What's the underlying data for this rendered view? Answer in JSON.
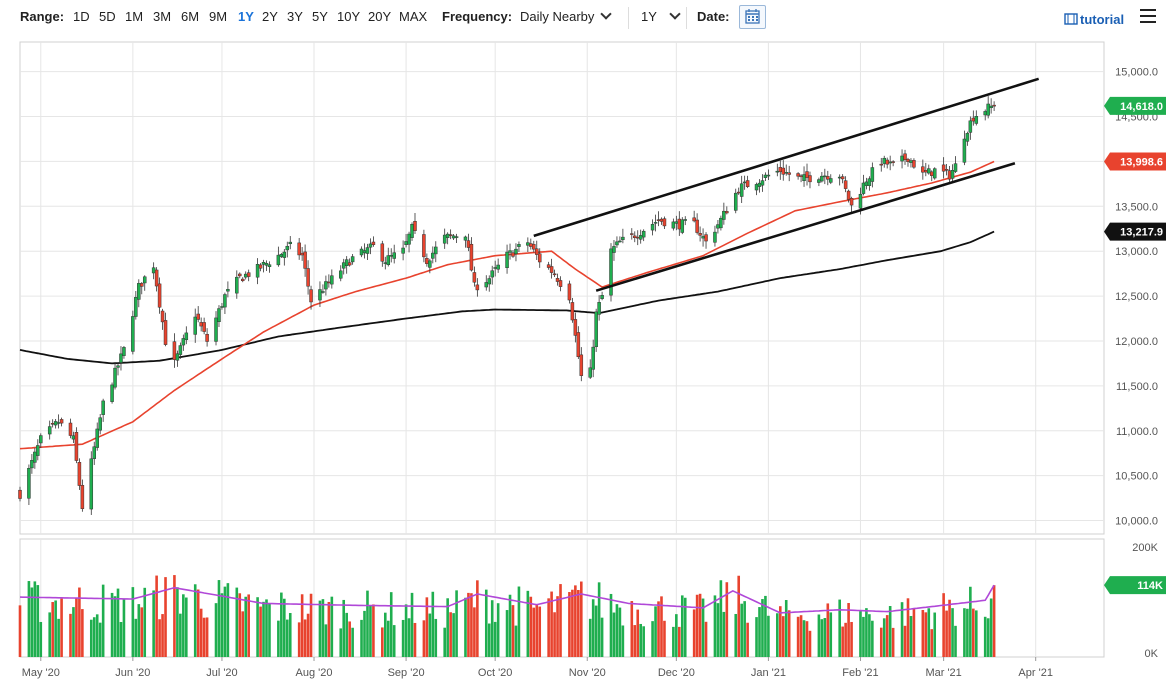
{
  "toolbar": {
    "range_label": "Range:",
    "ranges": [
      "1D",
      "5D",
      "1M",
      "3M",
      "6M",
      "9M",
      "1Y",
      "2Y",
      "3Y",
      "5Y",
      "10Y",
      "20Y",
      "MAX"
    ],
    "active_range": "1Y",
    "frequency_label": "Frequency:",
    "frequency_value": "Daily Nearby",
    "period_value": "1Y",
    "date_label": "Date:",
    "tutorial_label": "tutorial"
  },
  "colors": {
    "up": "#1fae4f",
    "down": "#e8432e",
    "ma_fast": "#e8432e",
    "ma_slow": "#111111",
    "volume_avg": "#b048d8",
    "badge_price": "#1fae4f",
    "badge_ma_fast": "#e8432e",
    "badge_ma_slow": "#111111",
    "badge_volume": "#1fae4f"
  },
  "chart_data": {
    "type": "candlestick",
    "price_axis": {
      "ticks": [
        "15,000.0",
        "14,500.0",
        "14,000.0",
        "13,500.0",
        "13,000.0",
        "12,500.0",
        "12,000.0",
        "11,500.0",
        "11,000.0",
        "10,500.0",
        "10,000.0"
      ],
      "tick_values": [
        15000,
        14500,
        14000,
        13500,
        13000,
        12500,
        12000,
        11500,
        11000,
        10500,
        10000
      ],
      "ylim": [
        9850,
        15330
      ]
    },
    "volume_axis": {
      "ticks": [
        "200K",
        "0K"
      ],
      "tick_values": [
        200000,
        0
      ],
      "ylim": [
        0,
        200000
      ]
    },
    "x_axis": {
      "labels": [
        "May '20",
        "Jun '20",
        "Jul '20",
        "Aug '20",
        "Sep '20",
        "Oct '20",
        "Nov '20",
        "Dec '20",
        "Jan '21",
        "Feb '21",
        "Mar '21",
        "Apr '21"
      ],
      "dates": [
        "2020-05-01",
        "2020-06-01",
        "2020-07-01",
        "2020-08-01",
        "2020-09-01",
        "2020-10-01",
        "2020-11-01",
        "2020-12-01",
        "2021-01-01",
        "2021-02-01",
        "2021-03-01",
        "2021-04-01"
      ],
      "start": "2020-04-24",
      "end": "2021-04-24"
    },
    "price_anchors": [
      [
        "2020-04-24",
        10300
      ],
      [
        "2020-05-01",
        10900
      ],
      [
        "2020-05-07",
        11100
      ],
      [
        "2020-05-12",
        10900
      ],
      [
        "2020-05-15",
        10150
      ],
      [
        "2020-05-22",
        11300
      ],
      [
        "2020-05-29",
        11900
      ],
      [
        "2020-06-03",
        12600
      ],
      [
        "2020-06-08",
        12850
      ],
      [
        "2020-06-12",
        12000
      ],
      [
        "2020-06-15",
        11750
      ],
      [
        "2020-06-22",
        12300
      ],
      [
        "2020-06-26",
        12000
      ],
      [
        "2020-07-02",
        12500
      ],
      [
        "2020-07-07",
        12700
      ],
      [
        "2020-07-13",
        12800
      ],
      [
        "2020-07-20",
        12950
      ],
      [
        "2020-07-24",
        13050
      ],
      [
        "2020-07-28",
        12950
      ],
      [
        "2020-07-31",
        12450
      ],
      [
        "2020-08-06",
        12650
      ],
      [
        "2020-08-13",
        12900
      ],
      [
        "2020-08-21",
        13050
      ],
      [
        "2020-08-25",
        12900
      ],
      [
        "2020-08-31",
        13000
      ],
      [
        "2020-09-03",
        13250
      ],
      [
        "2020-09-08",
        12900
      ],
      [
        "2020-09-14",
        13150
      ],
      [
        "2020-09-21",
        13200
      ],
      [
        "2020-09-24",
        12600
      ],
      [
        "2020-09-29",
        12700
      ],
      [
        "2020-10-05",
        12950
      ],
      [
        "2020-10-12",
        13100
      ],
      [
        "2020-10-16",
        12900
      ],
      [
        "2020-10-21",
        12750
      ],
      [
        "2020-10-26",
        12500
      ],
      [
        "2020-10-30",
        11600
      ],
      [
        "2020-11-02",
        11650
      ],
      [
        "2020-11-04",
        12300
      ],
      [
        "2020-11-06",
        12500
      ],
      [
        "2020-11-09",
        13000
      ],
      [
        "2020-11-12",
        13100
      ],
      [
        "2020-11-18",
        13200
      ],
      [
        "2020-11-25",
        13350
      ],
      [
        "2020-12-01",
        13300
      ],
      [
        "2020-12-07",
        13300
      ],
      [
        "2020-12-11",
        13100
      ],
      [
        "2020-12-16",
        13350
      ],
      [
        "2020-12-22",
        13700
      ],
      [
        "2020-12-29",
        13800
      ],
      [
        "2021-01-05",
        13900
      ],
      [
        "2021-01-12",
        13800
      ],
      [
        "2021-01-19",
        13850
      ],
      [
        "2021-01-25",
        13850
      ],
      [
        "2021-01-29",
        13500
      ],
      [
        "2021-02-03",
        13800
      ],
      [
        "2021-02-08",
        14000
      ],
      [
        "2021-02-12",
        13950
      ],
      [
        "2021-02-17",
        14050
      ],
      [
        "2021-02-22",
        13850
      ],
      [
        "2021-02-26",
        13900
      ],
      [
        "2021-03-03",
        13850
      ],
      [
        "2021-03-05",
        13950
      ],
      [
        "2021-03-08",
        14300
      ],
      [
        "2021-03-11",
        14500
      ],
      [
        "2021-03-15",
        14580
      ],
      [
        "2021-03-18",
        14618
      ]
    ],
    "ma_fast_anchors": [
      [
        "2020-04-24",
        10800
      ],
      [
        "2020-05-15",
        10850
      ],
      [
        "2020-06-01",
        11100
      ],
      [
        "2020-06-15",
        11450
      ],
      [
        "2020-07-01",
        11800
      ],
      [
        "2020-07-15",
        12100
      ],
      [
        "2020-08-01",
        12400
      ],
      [
        "2020-08-15",
        12550
      ],
      [
        "2020-09-01",
        12700
      ],
      [
        "2020-09-15",
        12850
      ],
      [
        "2020-10-01",
        12950
      ],
      [
        "2020-10-20",
        13000
      ],
      [
        "2020-10-28",
        12800
      ],
      [
        "2020-11-06",
        12600
      ],
      [
        "2020-11-20",
        12750
      ],
      [
        "2020-12-10",
        12950
      ],
      [
        "2020-12-25",
        13200
      ],
      [
        "2021-01-10",
        13450
      ],
      [
        "2021-01-25",
        13550
      ],
      [
        "2021-02-10",
        13650
      ],
      [
        "2021-02-25",
        13760
      ],
      [
        "2021-03-10",
        13880
      ],
      [
        "2021-03-18",
        13998.6
      ]
    ],
    "ma_slow_anchors": [
      [
        "2020-04-24",
        11900
      ],
      [
        "2020-05-10",
        11800
      ],
      [
        "2020-05-25",
        11750
      ],
      [
        "2020-06-10",
        11780
      ],
      [
        "2020-07-01",
        11900
      ],
      [
        "2020-07-20",
        12050
      ],
      [
        "2020-08-10",
        12150
      ],
      [
        "2020-09-01",
        12250
      ],
      [
        "2020-09-20",
        12330
      ],
      [
        "2020-10-01",
        12350
      ],
      [
        "2020-10-25",
        12340
      ],
      [
        "2020-11-05",
        12310
      ],
      [
        "2020-11-25",
        12450
      ],
      [
        "2020-12-15",
        12550
      ],
      [
        "2021-01-05",
        12700
      ],
      [
        "2021-01-25",
        12800
      ],
      [
        "2021-02-10",
        12900
      ],
      [
        "2021-02-28",
        13000
      ],
      [
        "2021-03-10",
        13100
      ],
      [
        "2021-03-18",
        13217.9
      ]
    ],
    "trendlines": [
      {
        "name": "Upper channel",
        "from": [
          "2020-10-14",
          13170
        ],
        "to": [
          "2021-04-02",
          14920
        ]
      },
      {
        "name": "Lower channel",
        "from": [
          "2020-11-04",
          12560
        ],
        "to": [
          "2021-03-25",
          13980
        ]
      }
    ],
    "volume_avg_anchors": [
      [
        "2020-04-24",
        95000
      ],
      [
        "2020-06-01",
        92000
      ],
      [
        "2020-06-15",
        110000
      ],
      [
        "2020-07-15",
        85000
      ],
      [
        "2020-08-15",
        82000
      ],
      [
        "2020-09-15",
        80000
      ],
      [
        "2020-09-25",
        100000
      ],
      [
        "2020-10-15",
        83000
      ],
      [
        "2020-10-30",
        100000
      ],
      [
        "2020-11-15",
        85000
      ],
      [
        "2020-12-10",
        78000
      ],
      [
        "2020-12-20",
        105000
      ],
      [
        "2021-01-05",
        70000
      ],
      [
        "2021-01-25",
        75000
      ],
      [
        "2021-02-10",
        72000
      ],
      [
        "2021-02-25",
        80000
      ],
      [
        "2021-03-15",
        90000
      ],
      [
        "2021-03-18",
        114000
      ]
    ],
    "last_price": 14618.0,
    "last_ma_fast": 13998.6,
    "last_ma_slow": 13217.9,
    "last_volume": 114000,
    "badges": {
      "price": "14,618.0",
      "ma_fast": "13,998.6",
      "ma_slow": "13,217.9",
      "volume": "114K"
    }
  }
}
